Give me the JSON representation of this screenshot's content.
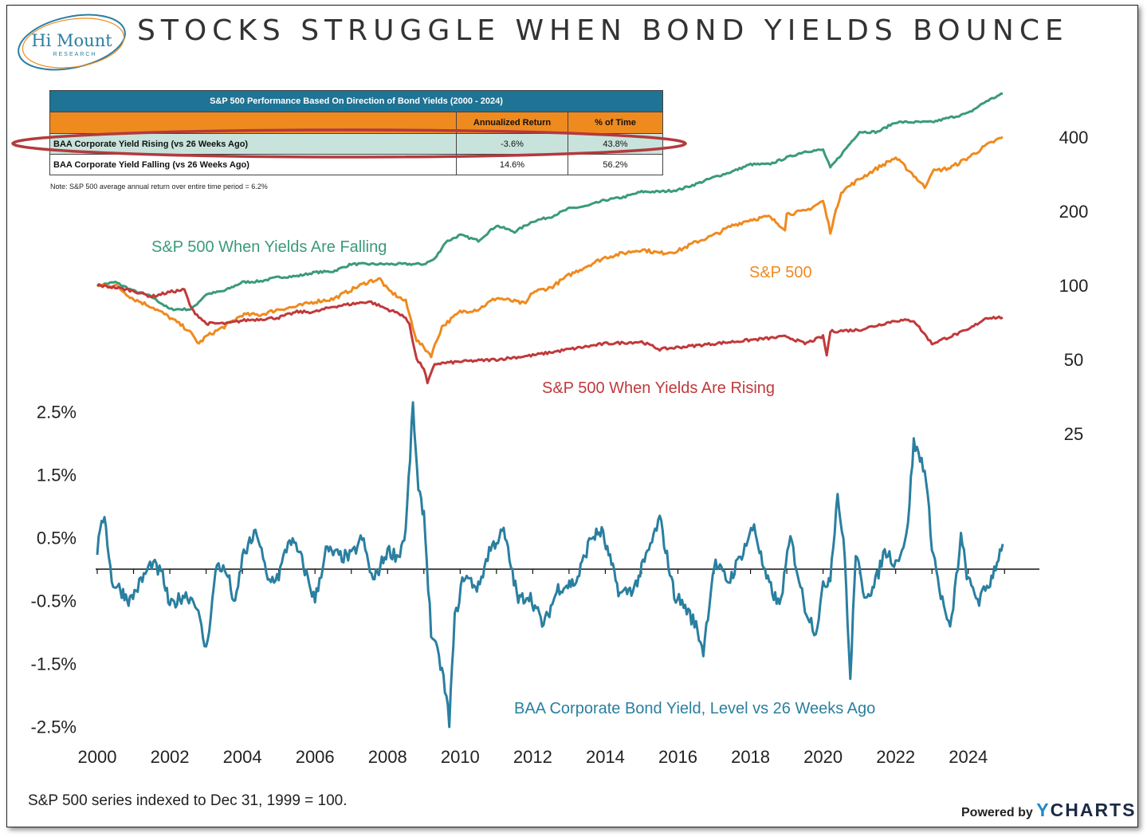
{
  "header": {
    "title": "STOCKS STRUGGLE WHEN BOND YIELDS BOUNCE",
    "logo_name": "Hi Mount",
    "logo_sub": "RESEARCH"
  },
  "table": {
    "title": "S&P 500 Performance Based On Direction of Bond Yields (2000 - 2024)",
    "col_return": "Annualized Return",
    "col_time": "% of Time",
    "rows": [
      {
        "label": "BAA Corporate Yield Rising (vs 26 Weeks Ago)",
        "ret": "-3.6%",
        "time": "43.8%"
      },
      {
        "label": "BAA Corporate Yield Falling (vs 26 Weeks Ago)",
        "ret": "14.6%",
        "time": "56.2%"
      }
    ],
    "note": "Note: S&P 500 average annual return over entire time period = 6.2%"
  },
  "footer": {
    "footnote": "S&P 500 series indexed to Dec 31, 1999 = 100.",
    "powered_by": "Powered by",
    "brand_y": "Y",
    "brand_rest": "CHARTS"
  },
  "colors": {
    "falling": "#3a9a7c",
    "sp500": "#ef8a1f",
    "rising": "#c0393b",
    "yield": "#2a7fa0",
    "highlight": "#b33a3e"
  },
  "chart_data": [
    {
      "type": "line",
      "scale": "log",
      "ylim": [
        25,
        400
      ],
      "right_axis_ticks": [
        "400",
        "200",
        "100",
        "50",
        "25"
      ],
      "series": [
        {
          "name": "S&P 500 When Yields Are Falling",
          "x": [
            2000,
            2000.5,
            2001,
            2001.5,
            2002,
            2002.6,
            2003,
            2003.5,
            2004,
            2004.5,
            2005,
            2005.5,
            2006,
            2006.5,
            2007,
            2007.5,
            2008,
            2008.5,
            2009,
            2009.3,
            2009.6,
            2010,
            2010.5,
            2011,
            2011.5,
            2012,
            2012.5,
            2013,
            2013.5,
            2014,
            2014.5,
            2015,
            2015.5,
            2016,
            2016.5,
            2017,
            2017.5,
            2018,
            2018.5,
            2019,
            2019.5,
            2020,
            2020.2,
            2020.5,
            2021,
            2021.5,
            2022,
            2022.5,
            2023,
            2023.5,
            2024,
            2024.5,
            2024.95
          ],
          "values": [
            100,
            103,
            95,
            90,
            80,
            80,
            92,
            95,
            103,
            104,
            108,
            109,
            113,
            114,
            122,
            122,
            122,
            122,
            122,
            128,
            150,
            160,
            152,
            175,
            165,
            182,
            190,
            205,
            210,
            222,
            228,
            240,
            240,
            244,
            258,
            275,
            290,
            310,
            310,
            330,
            350,
            355,
            300,
            340,
            420,
            420,
            460,
            460,
            460,
            480,
            500,
            560,
            600
          ]
        },
        {
          "name": "S&P 500",
          "x": [
            2000,
            2000.5,
            2001,
            2001.5,
            2002,
            2002.5,
            2002.8,
            2003,
            2003.5,
            2004,
            2004.5,
            2005,
            2005.5,
            2006,
            2006.5,
            2007,
            2007.5,
            2007.8,
            2008,
            2008.5,
            2008.8,
            2009.2,
            2009.5,
            2010,
            2010.5,
            2011,
            2011.5,
            2011.8,
            2012,
            2012.5,
            2013,
            2013.5,
            2014,
            2014.5,
            2015,
            2015.5,
            2016,
            2016.5,
            2017,
            2017.5,
            2018,
            2018.5,
            2018.95,
            2019,
            2019.5,
            2020,
            2020.2,
            2020.5,
            2021,
            2021.5,
            2022,
            2022.5,
            2022.8,
            2023,
            2023.5,
            2024,
            2024.5,
            2024.95
          ],
          "values": [
            100,
            100,
            88,
            82,
            74,
            66,
            58,
            62,
            68,
            76,
            76,
            80,
            82,
            86,
            88,
            96,
            104,
            106,
            96,
            86,
            60,
            52,
            68,
            78,
            80,
            89,
            86,
            84,
            94,
            98,
            110,
            120,
            130,
            135,
            140,
            135,
            138,
            150,
            160,
            175,
            185,
            190,
            170,
            195,
            200,
            220,
            165,
            240,
            270,
            300,
            330,
            280,
            250,
            290,
            300,
            330,
            370,
            400
          ]
        },
        {
          "name": "S&P 500 When Yields Are Rising",
          "x": [
            2000,
            2000.5,
            2001,
            2001.5,
            2002,
            2002.4,
            2002.6,
            2003,
            2003.6,
            2004,
            2005,
            2005.5,
            2006,
            2006.5,
            2007,
            2007.5,
            2008,
            2008.4,
            2008.6,
            2008.8,
            2009,
            2009.1,
            2009.3,
            2010,
            2011,
            2012,
            2013,
            2014,
            2015,
            2015.5,
            2016,
            2017,
            2018,
            2019,
            2019.5,
            2020,
            2020.1,
            2020.2,
            2021,
            2022,
            2022.5,
            2023,
            2023.5,
            2024,
            2024.5,
            2024.95
          ],
          "values": [
            100,
            98,
            95,
            90,
            94,
            96,
            80,
            70,
            70,
            72,
            74,
            78,
            78,
            82,
            84,
            86,
            80,
            76,
            70,
            50,
            46,
            40,
            48,
            49,
            50,
            52,
            55,
            58,
            59,
            55,
            56,
            58,
            60,
            62,
            58,
            62,
            52,
            65,
            66,
            72,
            72,
            58,
            62,
            66,
            74,
            74
          ]
        }
      ],
      "labels": [
        "S&P 500 When Yields Are Falling",
        "S&P 500",
        "S&P 500 When Yields Are Rising"
      ]
    },
    {
      "type": "line",
      "title": "BAA Corporate Bond Yield, Level vs 26 Weeks Ago",
      "xlabel": "",
      "ylabel": "",
      "ylim": [
        -2.5,
        2.5
      ],
      "left_axis_ticks": [
        "2.5%",
        "1.5%",
        "0.5%",
        "-0.5%",
        "-1.5%",
        "-2.5%"
      ],
      "x_ticks": [
        "2000",
        "2002",
        "2004",
        "2006",
        "2008",
        "2010",
        "2012",
        "2014",
        "2016",
        "2018",
        "2020",
        "2022",
        "2024"
      ],
      "series": [
        {
          "name": "BAA Corporate Bond Yield, Level vs 26 Weeks Ago",
          "x": [
            2000,
            2000.2,
            2000.4,
            2000.6,
            2000.9,
            2001.2,
            2001.5,
            2001.8,
            2002,
            2002.4,
            2002.7,
            2003,
            2003.3,
            2003.6,
            2003.8,
            2004,
            2004.4,
            2004.7,
            2005,
            2005.3,
            2005.6,
            2006,
            2006.3,
            2006.7,
            2007,
            2007.3,
            2007.6,
            2008,
            2008.3,
            2008.5,
            2008.7,
            2008.85,
            2009,
            2009.2,
            2009.5,
            2009.7,
            2009.85,
            2010.1,
            2010.5,
            2010.8,
            2011.2,
            2011.6,
            2011.9,
            2012.3,
            2012.7,
            2013.2,
            2013.6,
            2013.9,
            2014.4,
            2014.8,
            2015.2,
            2015.5,
            2015.9,
            2016.2,
            2016.5,
            2016.7,
            2017,
            2017.4,
            2017.8,
            2018.1,
            2018.4,
            2018.8,
            2019.1,
            2019.5,
            2019.8,
            2020,
            2020.2,
            2020.4,
            2020.6,
            2020.75,
            2020.9,
            2021.1,
            2021.4,
            2021.7,
            2022,
            2022.3,
            2022.5,
            2022.8,
            2023,
            2023.2,
            2023.5,
            2023.8,
            2024,
            2024.3,
            2024.6,
            2024.95
          ],
          "values": [
            0.3,
            0.9,
            -0.2,
            -0.3,
            -0.5,
            -0.2,
            0.1,
            -0.1,
            -0.6,
            -0.4,
            -0.5,
            -1.3,
            0.1,
            -0.1,
            -0.6,
            0.2,
            0.6,
            -0.2,
            -0.1,
            0.5,
            0.2,
            -0.5,
            0.3,
            0.2,
            0.2,
            0.5,
            -0.2,
            0.3,
            0.2,
            0.6,
            2.6,
            1.2,
            0.9,
            -1.0,
            -1.6,
            -2.4,
            -0.8,
            -0.1,
            -0.3,
            0.3,
            0.6,
            -0.5,
            -0.4,
            -0.9,
            -0.3,
            -0.2,
            0.5,
            0.6,
            -0.4,
            -0.3,
            0.3,
            0.8,
            -0.4,
            -0.6,
            -0.9,
            -1.3,
            0.1,
            -0.2,
            0.3,
            0.7,
            -0.1,
            -0.6,
            0.5,
            -0.6,
            -1.0,
            -0.3,
            -0.1,
            1.2,
            0.2,
            -1.8,
            0.3,
            -0.4,
            -0.3,
            0.3,
            0.1,
            0.5,
            2.0,
            1.6,
            0.4,
            -0.3,
            -1.0,
            0.5,
            -0.2,
            -0.5,
            -0.2,
            0.4
          ]
        }
      ]
    }
  ]
}
